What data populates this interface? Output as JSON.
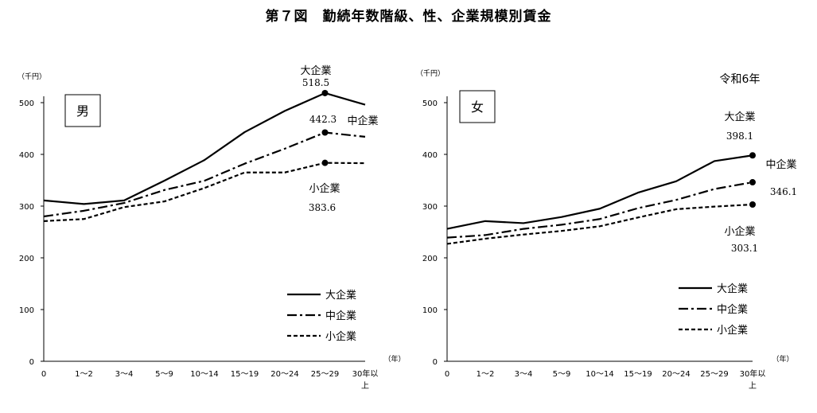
{
  "figure_title": "第７図　勤続年数階級、性、企業規模別賃金",
  "chart_data": [
    {
      "type": "line",
      "panel_label": "男",
      "year_note": "",
      "ylabel": "（千円）",
      "xlabel": "（年）",
      "ylim": [
        0,
        500
      ],
      "yticks": [
        0,
        100,
        200,
        300,
        400,
        500
      ],
      "categories": [
        "0",
        "1～2",
        "3～4",
        "5～9",
        "10～14",
        "15～19",
        "20～24",
        "25～29",
        "30年以上"
      ],
      "series": [
        {
          "name": "大企業",
          "style": "solid",
          "values": [
            311,
            304,
            311,
            349,
            389,
            443,
            484,
            518.5,
            496
          ]
        },
        {
          "name": "中企業",
          "style": "dashdot",
          "values": [
            280,
            291,
            306,
            331,
            349,
            382,
            411,
            442.3,
            434
          ]
        },
        {
          "name": "小企業",
          "style": "dashed",
          "values": [
            271,
            275,
            298,
            309,
            335,
            365,
            365,
            383.6,
            383
          ]
        }
      ],
      "annotations": [
        {
          "series": "大企業",
          "label": "大企業",
          "value": "518.5"
        },
        {
          "series": "中企業",
          "label": "中企業",
          "value": "442.3"
        },
        {
          "series": "小企業",
          "label": "小企業",
          "value": "383.6"
        }
      ],
      "legend": {
        "placement": "bottom-right",
        "items": [
          "大企業",
          "中企業",
          "小企業"
        ]
      }
    },
    {
      "type": "line",
      "panel_label": "女",
      "year_note": "令和6年",
      "ylabel": "（千円）",
      "xlabel": "（年）",
      "ylim": [
        0,
        500
      ],
      "yticks": [
        0,
        100,
        200,
        300,
        400,
        500
      ],
      "categories": [
        "0",
        "1～2",
        "3～4",
        "5～9",
        "10～14",
        "15～19",
        "20～24",
        "25～29",
        "30年以上"
      ],
      "series": [
        {
          "name": "大企業",
          "style": "solid",
          "values": [
            256,
            271,
            267,
            279,
            295,
            326,
            348,
            387,
            398.1
          ]
        },
        {
          "name": "中企業",
          "style": "dashdot",
          "values": [
            239,
            244,
            256,
            264,
            275,
            296,
            312,
            333,
            346.1
          ]
        },
        {
          "name": "小企業",
          "style": "dashed",
          "values": [
            227,
            237,
            245,
            252,
            261,
            278,
            294,
            299,
            303.1
          ]
        }
      ],
      "annotations": [
        {
          "series": "大企業",
          "label": "大企業",
          "value": "398.1"
        },
        {
          "series": "中企業",
          "label": "中企業",
          "value": "346.1"
        },
        {
          "series": "小企業",
          "label": "小企業",
          "value": "303.1"
        }
      ],
      "legend": {
        "placement": "bottom-right",
        "items": [
          "大企業",
          "中企業",
          "小企業"
        ]
      }
    }
  ]
}
